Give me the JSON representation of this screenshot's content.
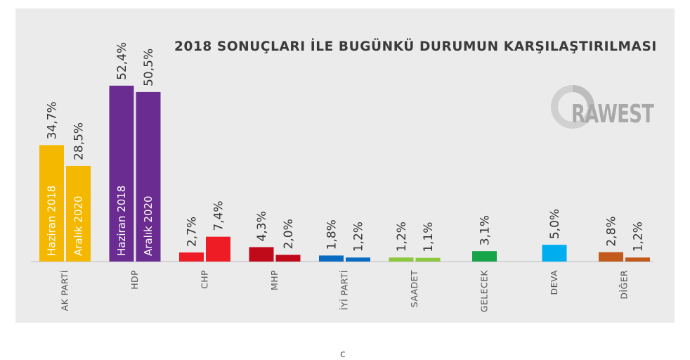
{
  "chart_data": {
    "type": "bar",
    "title": "2018 SONUÇLARI İLE BUGÜNKÜ DURUMUN KARŞILAŞTIRILMASI",
    "ylim": [
      0,
      55
    ],
    "grid": false,
    "series_labels": [
      "Haziran 2018",
      "Aralık 2020"
    ],
    "categories": [
      {
        "name": "AK PARTİ",
        "color": "#f5b800",
        "bars": [
          {
            "value": 34.7,
            "label": "34,7%"
          },
          {
            "value": 28.5,
            "label": "28,5%"
          }
        ],
        "inbar": true
      },
      {
        "name": "HDP",
        "color": "#6b2c91",
        "bars": [
          {
            "value": 52.4,
            "label": "52,4%"
          },
          {
            "value": 50.5,
            "label": "50,5%"
          }
        ],
        "inbar": true
      },
      {
        "name": "CHP",
        "color": "#ee1c25",
        "bars": [
          {
            "value": 2.7,
            "label": "2,7%"
          },
          {
            "value": 7.4,
            "label": "7,4%"
          }
        ]
      },
      {
        "name": "MHP",
        "color": "#c00a1a",
        "bars": [
          {
            "value": 4.3,
            "label": "4,3%"
          },
          {
            "value": 2.0,
            "label": "2,0%"
          }
        ]
      },
      {
        "name": "İYİ PARTİ",
        "color": "#0a6cc0",
        "bars": [
          {
            "value": 1.8,
            "label": "1,8%"
          },
          {
            "value": 1.2,
            "label": "1,2%"
          }
        ]
      },
      {
        "name": "SAADET",
        "color": "#8dc63f",
        "bars": [
          {
            "value": 1.2,
            "label": "1,2%"
          },
          {
            "value": 1.1,
            "label": "1,1%"
          }
        ]
      },
      {
        "name": "GELECEK",
        "color": "#17a34a",
        "bars": [
          {
            "value": 3.1,
            "label": "3,1%"
          }
        ]
      },
      {
        "name": "DEVA",
        "color": "#00aeef",
        "bars": [
          {
            "value": 5.0,
            "label": "5,0%"
          }
        ]
      },
      {
        "name": "DİĞER",
        "color": "#c25a1c",
        "bars": [
          {
            "value": 2.8,
            "label": "2,8%"
          },
          {
            "value": 1.2,
            "label": "1,2%"
          }
        ]
      }
    ]
  },
  "logo": {
    "text": "RAWEST"
  },
  "bottom_mark": "c"
}
